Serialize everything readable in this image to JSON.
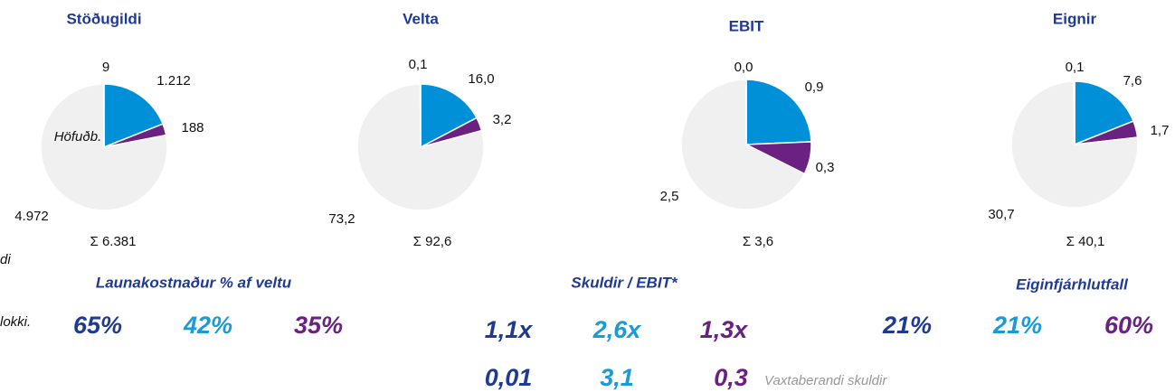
{
  "chart_data": [
    {
      "type": "pie",
      "title": "Stöðugildi",
      "values": [
        1212,
        188,
        4972,
        9
      ],
      "value_labels": [
        "1.212",
        "188",
        "4.972",
        "9"
      ],
      "colors": [
        "#0090d8",
        "#6a2182",
        "#f0f0f0",
        "#1f3a93"
      ],
      "total_label": "Σ 6.381",
      "annotation": "Höfuðb."
    },
    {
      "type": "pie",
      "title": "Velta",
      "values": [
        16.0,
        3.2,
        73.2,
        0.1
      ],
      "value_labels": [
        "16,0",
        "3,2",
        "73,2",
        "0,1"
      ],
      "colors": [
        "#0090d8",
        "#6a2182",
        "#f0f0f0",
        "#1f3a93"
      ],
      "total_label": "Σ 92,6"
    },
    {
      "type": "pie",
      "title": "EBIT",
      "values": [
        0.9,
        0.3,
        2.5,
        0.0
      ],
      "value_labels": [
        "0,9",
        "0,3",
        "2,5",
        "0,0"
      ],
      "colors": [
        "#0090d8",
        "#6a2182",
        "#f0f0f0",
        "#1f3a93"
      ],
      "total_label": "Σ 3,6"
    },
    {
      "type": "pie",
      "title": "Eignir",
      "values": [
        7.6,
        1.7,
        30.7,
        0.1
      ],
      "value_labels": [
        "7,6",
        "1,7",
        "30,7",
        "0,1"
      ],
      "colors": [
        "#0090d8",
        "#6a2182",
        "#f0f0f0",
        "#1f3a93"
      ],
      "total_label": "Σ 40,1"
    }
  ],
  "side_notes": [
    "di",
    "lokki."
  ],
  "kpis": [
    {
      "title": "Launakostnaður % af veltu",
      "items": [
        "65%",
        "42%",
        "35%"
      ]
    },
    {
      "title": "Skuldir / EBIT*",
      "items": [
        "1,1x",
        "2,6x",
        "1,3x"
      ],
      "second_row": [
        "0,01",
        "3,1",
        "0,3"
      ],
      "second_row_note": "Vaxtaberandi skuldir"
    },
    {
      "title": "Eiginfjárhlutfall",
      "items": [
        "21%",
        "21%",
        "60%"
      ]
    }
  ],
  "kpi_colors": [
    "#1f3a93",
    "#1a9ad6",
    "#6a2182"
  ]
}
